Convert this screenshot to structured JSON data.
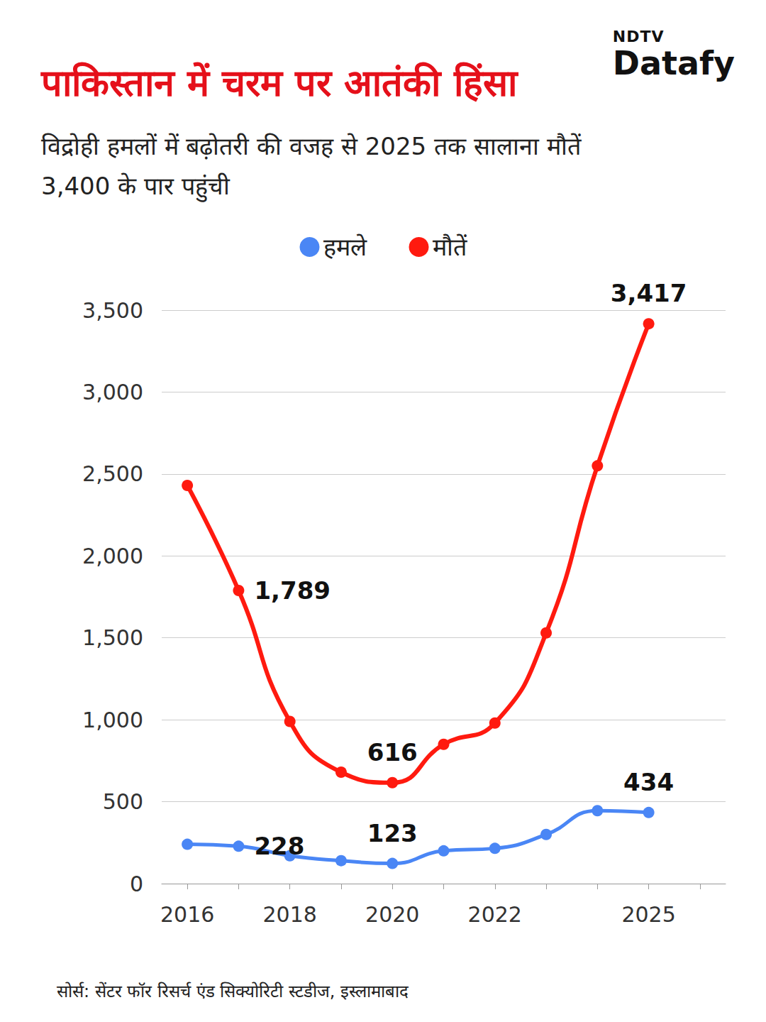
{
  "chart_data": {
    "type": "line",
    "title": "पाकिस्तान में चरम पर आतंकी हिंसा",
    "subtitle": "विद्रोही हमलों में बढ़ोतरी की वजह से 2025 तक सालाना मौतें 3,400 के पार पहुंची",
    "source": "सोर्स: सेंटर फॉर रिसर्च एंड सिक्योरिटी स्टडीज, इस्लामाबाद",
    "logo": [
      "NDTV",
      "Datafy"
    ],
    "categories": [
      "2016",
      null,
      "2018",
      null,
      "2020",
      null,
      "2022",
      null,
      null,
      "2025",
      null
    ],
    "series": [
      {
        "name": "हमले",
        "color": "#4a86f5",
        "values": [
          240,
          228,
          170,
          140,
          123,
          200,
          215,
          300,
          445,
          434,
          null
        ],
        "value_labels": [
          null,
          "228",
          null,
          null,
          "123",
          null,
          null,
          null,
          null,
          "434",
          null
        ]
      },
      {
        "name": "मौतें",
        "color": "#ff1a0f",
        "values": [
          2430,
          1789,
          990,
          680,
          616,
          850,
          980,
          1530,
          2550,
          3417,
          null
        ],
        "value_labels": [
          null,
          "1,789",
          null,
          null,
          "616",
          null,
          null,
          null,
          null,
          "3,417",
          null
        ]
      }
    ],
    "ylim": [
      0,
      3500
    ],
    "yticks": [
      0,
      500,
      {
        "value": 1000,
        "label": "1,000"
      },
      {
        "value": 1500,
        "label": "1,500"
      },
      {
        "value": 2000,
        "label": "2,000"
      },
      {
        "value": 2500,
        "label": "2,500"
      },
      {
        "value": 3000,
        "label": "3,000"
      },
      {
        "value": 3500,
        "label": "3,500"
      }
    ],
    "grid": true,
    "legend": "top",
    "data_labels": true
  }
}
